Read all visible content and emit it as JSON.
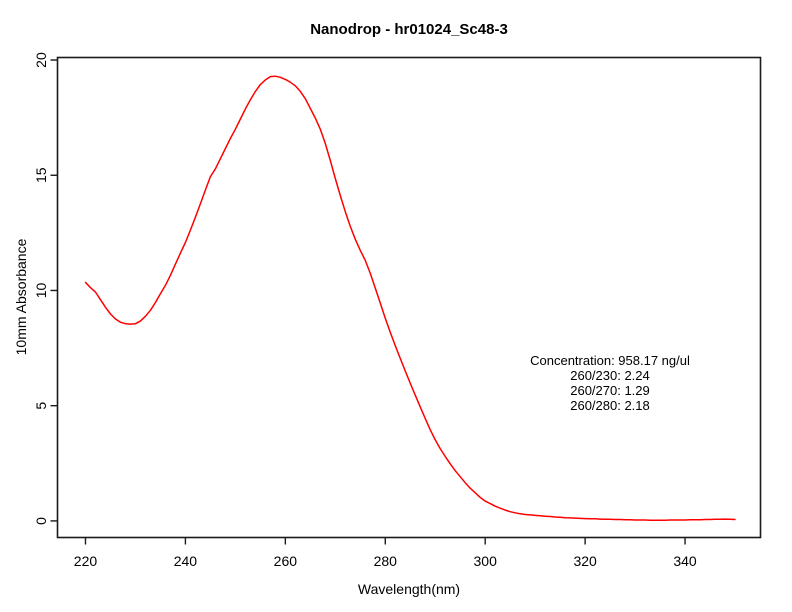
{
  "figure": {
    "background": "#ffffff",
    "text_color": "#000000",
    "frame_color": "#1a1a1a"
  },
  "chart_data": {
    "type": "line",
    "title": "Nanodrop - hr01024_Sc48-3",
    "xlabel": "Wavelength(nm)",
    "ylabel": "10mm Absorbance",
    "x_ticks": [
      220,
      240,
      260,
      280,
      300,
      320,
      340
    ],
    "y_ticks": [
      0,
      5,
      10,
      15,
      20
    ],
    "xlim": [
      214.4,
      355.1
    ],
    "ylim": [
      -0.72,
      20.11
    ],
    "grid": false,
    "frame": true,
    "legend": "none",
    "series": [
      {
        "name": "absorbance-spectrum",
        "color": "#ff0000",
        "x": [
          220,
          221,
          222,
          223,
          224,
          225,
          226,
          227,
          228,
          229,
          230,
          231,
          232,
          233,
          234,
          235,
          236,
          237,
          238,
          239,
          240,
          241,
          242,
          243,
          244,
          245,
          246,
          247,
          248,
          249,
          250,
          251,
          252,
          253,
          254,
          255,
          256,
          257,
          258,
          259,
          260,
          261,
          262,
          263,
          264,
          265,
          266,
          267,
          268,
          269,
          270,
          271,
          272,
          273,
          274,
          275,
          276,
          277,
          278,
          279,
          280,
          281,
          282,
          283,
          284,
          285,
          286,
          287,
          288,
          289,
          290,
          291,
          292,
          293,
          294,
          295,
          296,
          297,
          298,
          299,
          300,
          301,
          302,
          303,
          304,
          305,
          306,
          307,
          308,
          309,
          310,
          311,
          312,
          313,
          314,
          315,
          316,
          317,
          318,
          319,
          320,
          321,
          322,
          323,
          324,
          325,
          326,
          327,
          328,
          329,
          330,
          331,
          332,
          333,
          334,
          335,
          336,
          337,
          338,
          339,
          340,
          341,
          342,
          343,
          344,
          345,
          346,
          347,
          348,
          349,
          350
        ],
        "y": [
          10.35,
          10.12,
          9.93,
          9.6,
          9.27,
          8.98,
          8.76,
          8.62,
          8.56,
          8.54,
          8.56,
          8.67,
          8.88,
          9.14,
          9.48,
          9.86,
          10.22,
          10.66,
          11.14,
          11.62,
          12.08,
          12.62,
          13.18,
          13.76,
          14.36,
          14.94,
          15.28,
          15.72,
          16.16,
          16.6,
          17.0,
          17.44,
          17.88,
          18.28,
          18.64,
          18.94,
          19.14,
          19.28,
          19.3,
          19.25,
          19.16,
          19.04,
          18.88,
          18.64,
          18.32,
          17.9,
          17.48,
          17.0,
          16.38,
          15.64,
          14.86,
          14.12,
          13.42,
          12.78,
          12.22,
          11.74,
          11.3,
          10.74,
          10.1,
          9.45,
          8.79,
          8.18,
          7.6,
          7.05,
          6.5,
          5.98,
          5.46,
          4.95,
          4.45,
          3.96,
          3.52,
          3.14,
          2.8,
          2.48,
          2.18,
          1.92,
          1.66,
          1.42,
          1.22,
          1.02,
          0.86,
          0.75,
          0.64,
          0.55,
          0.47,
          0.4,
          0.35,
          0.31,
          0.28,
          0.26,
          0.24,
          0.22,
          0.2,
          0.19,
          0.17,
          0.16,
          0.14,
          0.13,
          0.12,
          0.11,
          0.1,
          0.09,
          0.09,
          0.08,
          0.07,
          0.07,
          0.06,
          0.06,
          0.05,
          0.05,
          0.04,
          0.04,
          0.04,
          0.03,
          0.03,
          0.03,
          0.03,
          0.04,
          0.04,
          0.04,
          0.04,
          0.05,
          0.05,
          0.05,
          0.06,
          0.06,
          0.07,
          0.07,
          0.08,
          0.07,
          0.06
        ]
      }
    ],
    "annotation": {
      "lines": [
        "Concentration: 958.17 ng/ul",
        "260/230: 2.24",
        "260/270: 1.29",
        "260/280: 2.18"
      ]
    }
  }
}
